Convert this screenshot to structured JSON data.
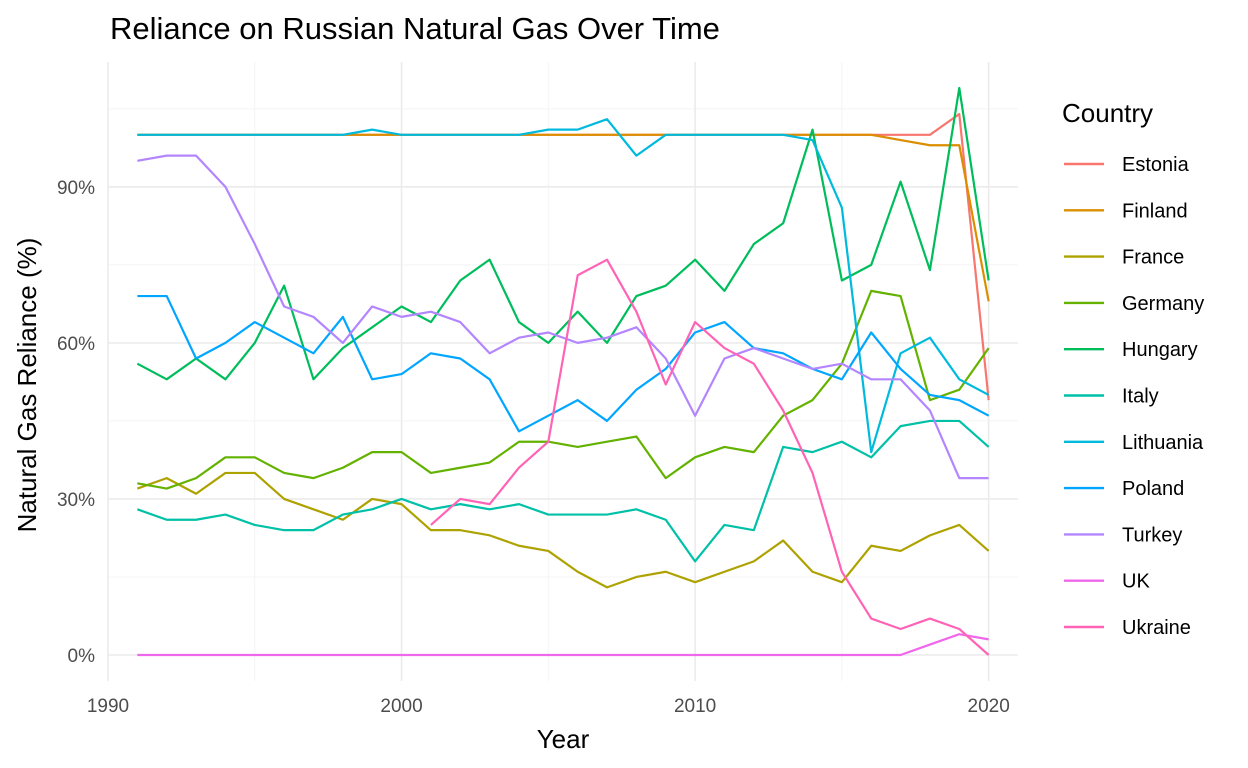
{
  "chart_data": {
    "type": "line",
    "title": "Reliance on Russian Natural Gas Over Time",
    "xlabel": "Year",
    "ylabel": "Natural Gas Reliance (%)",
    "xlim": [
      1990,
      2021
    ],
    "ylim": [
      -5,
      114
    ],
    "x_ticks": [
      1990,
      2000,
      2010,
      2020
    ],
    "x_tick_labels": [
      "1990",
      "2000",
      "2010",
      "2020"
    ],
    "y_ticks": [
      0,
      30,
      60,
      90
    ],
    "y_tick_labels": [
      "0%",
      "30%",
      "60%",
      "90%"
    ],
    "grid": true,
    "legend": {
      "title": "Country",
      "placement": "right"
    },
    "x": [
      1991,
      1992,
      1993,
      1994,
      1995,
      1996,
      1997,
      1998,
      1999,
      2000,
      2001,
      2002,
      2003,
      2004,
      2005,
      2006,
      2007,
      2008,
      2009,
      2010,
      2011,
      2012,
      2013,
      2014,
      2015,
      2016,
      2017,
      2018,
      2019,
      2020
    ],
    "series": [
      {
        "name": "Estonia",
        "color": "#F8766D",
        "values": [
          100,
          100,
          100,
          100,
          100,
          100,
          100,
          100,
          100,
          100,
          100,
          100,
          100,
          100,
          100,
          100,
          100,
          100,
          100,
          100,
          100,
          100,
          100,
          100,
          100,
          100,
          100,
          100,
          104,
          49
        ]
      },
      {
        "name": "Finland",
        "color": "#DB8E00",
        "values": [
          100,
          100,
          100,
          100,
          100,
          100,
          100,
          100,
          100,
          100,
          100,
          100,
          100,
          100,
          100,
          100,
          100,
          100,
          100,
          100,
          100,
          100,
          100,
          100,
          100,
          100,
          99,
          98,
          98,
          68
        ]
      },
      {
        "name": "France",
        "color": "#AEA200",
        "values": [
          32,
          34,
          31,
          35,
          35,
          30,
          28,
          26,
          30,
          29,
          24,
          24,
          23,
          21,
          20,
          16,
          13,
          15,
          16,
          14,
          16,
          18,
          22,
          16,
          14,
          21,
          20,
          23,
          25,
          20
        ]
      },
      {
        "name": "Germany",
        "color": "#64B200",
        "values": [
          33,
          32,
          34,
          38,
          38,
          35,
          34,
          36,
          39,
          39,
          35,
          36,
          37,
          41,
          41,
          40,
          41,
          42,
          34,
          38,
          40,
          39,
          46,
          49,
          56,
          70,
          69,
          49,
          51,
          59
        ]
      },
      {
        "name": "Hungary",
        "color": "#00BD5C",
        "values": [
          56,
          53,
          57,
          53,
          60,
          71,
          53,
          59,
          63,
          67,
          64,
          72,
          76,
          64,
          60,
          66,
          60,
          69,
          71,
          76,
          70,
          79,
          83,
          101,
          72,
          75,
          91,
          74,
          109,
          72
        ]
      },
      {
        "name": "Italy",
        "color": "#00C1A7",
        "values": [
          28,
          26,
          26,
          27,
          25,
          24,
          24,
          27,
          28,
          30,
          28,
          29,
          28,
          29,
          27,
          27,
          27,
          28,
          26,
          18,
          25,
          24,
          40,
          39,
          41,
          38,
          44,
          45,
          45,
          40
        ]
      },
      {
        "name": "Lithuania",
        "color": "#00BADE",
        "values": [
          100,
          100,
          100,
          100,
          100,
          100,
          100,
          100,
          101,
          100,
          100,
          100,
          100,
          100,
          101,
          101,
          103,
          96,
          100,
          100,
          100,
          100,
          100,
          99,
          86,
          39,
          58,
          61,
          53,
          50
        ]
      },
      {
        "name": "Poland",
        "color": "#00A6FF",
        "values": [
          69,
          69,
          57,
          60,
          64,
          61,
          58,
          65,
          53,
          54,
          58,
          57,
          53,
          43,
          46,
          49,
          45,
          51,
          55,
          62,
          64,
          59,
          58,
          55,
          53,
          62,
          55,
          50,
          49,
          46
        ]
      },
      {
        "name": "Turkey",
        "color": "#B385FF",
        "values": [
          95,
          96,
          96,
          90,
          79,
          67,
          65,
          60,
          67,
          65,
          66,
          64,
          58,
          61,
          62,
          60,
          61,
          63,
          57,
          46,
          57,
          59,
          57,
          55,
          56,
          53,
          53,
          47,
          34,
          34
        ]
      },
      {
        "name": "UK",
        "color": "#EF67EB",
        "values": [
          0,
          0,
          0,
          0,
          0,
          0,
          0,
          0,
          0,
          0,
          0,
          0,
          0,
          0,
          0,
          0,
          0,
          0,
          0,
          0,
          0,
          0,
          0,
          0,
          0,
          0,
          0,
          2,
          4,
          3
        ]
      },
      {
        "name": "Ukraine",
        "color": "#FF63B6",
        "values": [
          null,
          null,
          null,
          null,
          null,
          null,
          null,
          null,
          null,
          null,
          25,
          30,
          29,
          36,
          41,
          73,
          76,
          66,
          52,
          64,
          59,
          56,
          47,
          35,
          16,
          7,
          5,
          7,
          5,
          0
        ]
      }
    ]
  }
}
